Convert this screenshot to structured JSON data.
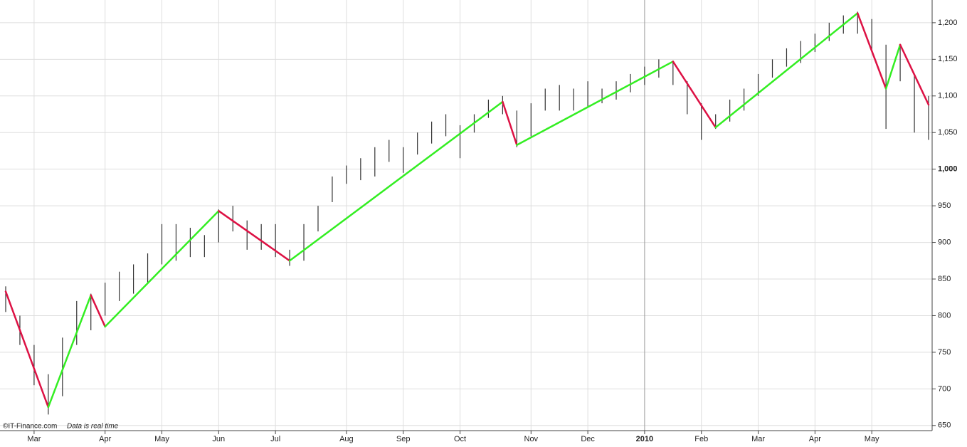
{
  "chart_data": {
    "type": "ohlc",
    "categories": [
      null,
      null,
      "Mar",
      null,
      null,
      null,
      null,
      "Apr",
      null,
      null,
      null,
      "May",
      null,
      null,
      null,
      "Jun",
      null,
      null,
      null,
      "Jul",
      null,
      null,
      null,
      null,
      "Aug",
      null,
      null,
      null,
      "Sep",
      null,
      null,
      null,
      "Oct",
      null,
      null,
      null,
      null,
      "Nov",
      null,
      null,
      null,
      "Dec",
      null,
      null,
      null,
      "2010",
      null,
      null,
      null,
      "Feb",
      null,
      null,
      null,
      "Mar",
      null,
      null,
      null,
      "Apr",
      null,
      null,
      null,
      "May",
      null,
      null,
      null,
      null
    ],
    "year_category": "2010",
    "high": [
      840,
      800,
      760,
      720,
      770,
      820,
      830,
      845,
      860,
      870,
      885,
      925,
      925,
      920,
      910,
      945,
      950,
      930,
      925,
      925,
      890,
      925,
      950,
      990,
      1005,
      1015,
      1030,
      1040,
      1030,
      1050,
      1065,
      1075,
      1060,
      1075,
      1095,
      1100,
      1080,
      1090,
      1110,
      1115,
      1110,
      1120,
      1110,
      1120,
      1130,
      1140,
      1150,
      1145,
      1120,
      1090,
      1075,
      1095,
      1110,
      1130,
      1150,
      1165,
      1175,
      1185,
      1200,
      1210,
      1215,
      1205,
      1170,
      1170,
      1130,
      1100
    ],
    "low": [
      805,
      760,
      705,
      665,
      690,
      760,
      780,
      800,
      820,
      830,
      845,
      870,
      875,
      880,
      880,
      900,
      915,
      890,
      890,
      880,
      868,
      875,
      915,
      955,
      980,
      985,
      990,
      1010,
      995,
      1020,
      1035,
      1045,
      1015,
      1050,
      1070,
      1075,
      1030,
      1045,
      1080,
      1080,
      1080,
      1085,
      1090,
      1095,
      1105,
      1115,
      1125,
      1115,
      1075,
      1040,
      1055,
      1065,
      1080,
      1100,
      1125,
      1140,
      1145,
      1160,
      1175,
      1185,
      1185,
      1160,
      1055,
      1120,
      1050,
      1040
    ],
    "bar_color": "#333333",
    "zigzag": [
      833,
      null,
      null,
      675,
      null,
      null,
      828,
      785,
      null,
      null,
      null,
      null,
      null,
      null,
      null,
      943,
      null,
      null,
      null,
      null,
      875,
      null,
      null,
      null,
      null,
      null,
      null,
      null,
      null,
      null,
      null,
      null,
      null,
      null,
      null,
      1092,
      1033,
      null,
      null,
      null,
      null,
      null,
      null,
      null,
      null,
      null,
      null,
      1147,
      null,
      null,
      1057,
      null,
      null,
      null,
      null,
      null,
      null,
      null,
      null,
      null,
      1213,
      null,
      1110,
      1170,
      null,
      1088
    ],
    "up_color": "#33ee22",
    "down_color": "#dd1144",
    "ylim": [
      643,
      1231
    ],
    "yticks": [
      650,
      700,
      750,
      800,
      850,
      900,
      950,
      {
        "value": 1000,
        "label": "1,000"
      },
      {
        "value": 1050,
        "label": "1,050"
      },
      {
        "value": 1100,
        "label": "1,100"
      },
      {
        "value": 1150,
        "label": "1,150"
      },
      {
        "value": 1200,
        "label": "1,200"
      }
    ],
    "bold_ytick": 1000,
    "grid": true,
    "annotations": [
      "©IT-Finance.com",
      "Data is real time"
    ]
  }
}
